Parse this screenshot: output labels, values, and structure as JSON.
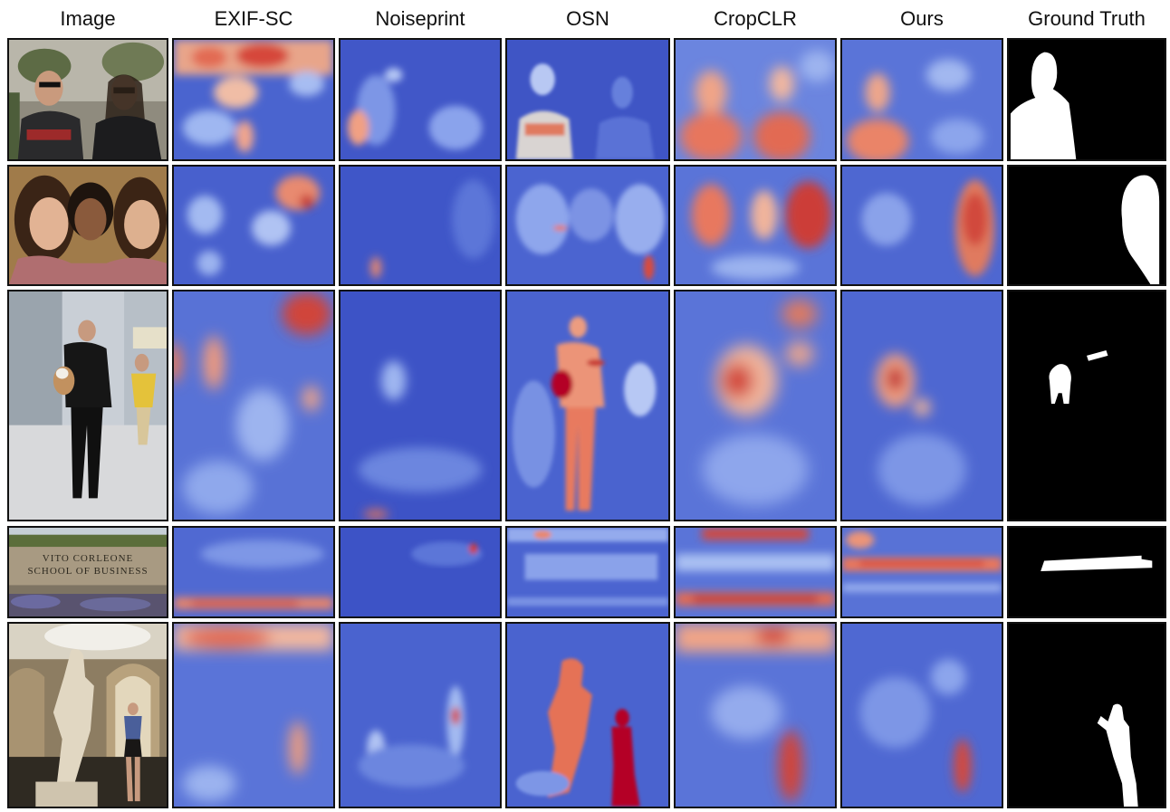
{
  "columns": [
    {
      "label": "Image"
    },
    {
      "label": "EXIF-SC"
    },
    {
      "label": "Noiseprint"
    },
    {
      "label": "OSN"
    },
    {
      "label": "CropCLR"
    },
    {
      "label": "Ours"
    },
    {
      "label": "Ground Truth"
    }
  ],
  "rows": [
    {
      "id": "two-people"
    },
    {
      "id": "three-women"
    },
    {
      "id": "running-man-dog"
    },
    {
      "id": "school-sign",
      "sign_line_1": "VITO CORLEONE",
      "sign_line_2": "SCHOOL OF BUSINESS"
    },
    {
      "id": "statue-museum"
    }
  ],
  "colormap": {
    "low": "#3b4cc0",
    "mid": "#dddddd",
    "high": "#b40426"
  },
  "mask_colors": {
    "background": "#000000",
    "foreground": "#ffffff"
  }
}
